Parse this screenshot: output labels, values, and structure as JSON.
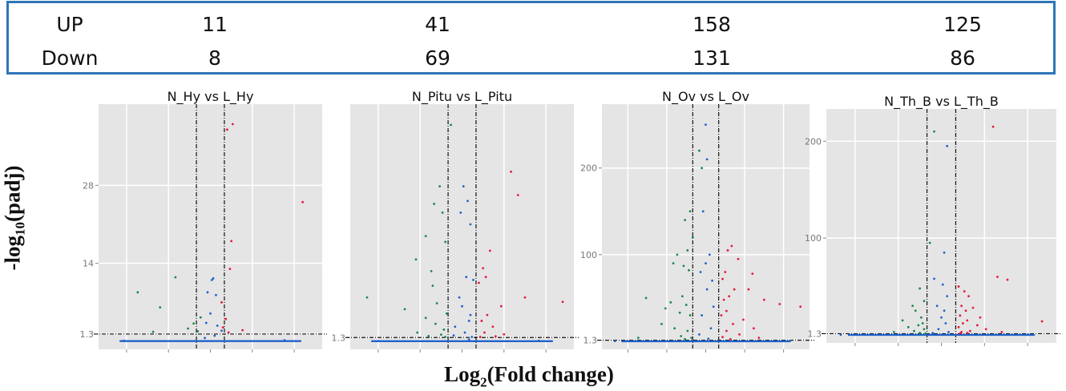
{
  "summary_table": {
    "rows": [
      {
        "label": "UP",
        "values": [
          "11",
          "41",
          "158",
          "125"
        ]
      },
      {
        "label": "Down",
        "values": [
          "8",
          "69",
          "131",
          "86"
        ]
      }
    ]
  },
  "axis": {
    "ylabel_main": "-log",
    "ylabel_sub": "10",
    "ylabel_tail": "(padj)",
    "xlabel_main": "Log",
    "xlabel_sub": "2",
    "xlabel_tail": "(Fold change)"
  },
  "colors": {
    "up": "#e8193c",
    "down": "#1a8a4a",
    "ns": "#1f62c9",
    "panel_bg": "#e5e5e5",
    "grid": "#ffffff",
    "border": "#2e75b6"
  },
  "chart_data": [
    {
      "type": "scatter",
      "title": "N_Hy  vs  L_Hy",
      "ytick_labels": [
        "1.3",
        "14",
        "28"
      ],
      "yticks": [
        1.3,
        14,
        28
      ],
      "ylim": [
        0,
        42
      ],
      "xlim": [
        -8,
        8
      ],
      "fc_threshold": 1,
      "padj_threshold": 1.3,
      "up": [
        [
          1.6,
          39
        ],
        [
          1.2,
          38
        ],
        [
          6.6,
          25
        ],
        [
          1.5,
          18
        ],
        [
          1.4,
          13
        ],
        [
          0.8,
          7
        ],
        [
          1.1,
          4
        ],
        [
          2.3,
          2
        ],
        [
          0.9,
          2.5
        ],
        [
          1.3,
          1.6
        ]
      ],
      "down": [
        [
          -5.2,
          8.8
        ],
        [
          -2.5,
          11.5
        ],
        [
          -1.2,
          3.2
        ],
        [
          -3.6,
          6.1
        ],
        [
          -0.7,
          4.3
        ],
        [
          -1.6,
          2.3
        ],
        [
          -0.9,
          1.8
        ],
        [
          -4.1,
          1.7
        ]
      ],
      "ns": [
        [
          0.1,
          11
        ],
        [
          0.2,
          11.3
        ],
        [
          -0.2,
          8.8
        ],
        [
          0.4,
          8.3
        ],
        [
          0.0,
          5
        ],
        [
          -0.3,
          3.3
        ],
        [
          0.5,
          2.8
        ],
        [
          0.8,
          1.9
        ],
        [
          0.3,
          1
        ],
        [
          -0.4,
          0.6
        ],
        [
          -6.2,
          0.1
        ],
        [
          5.3,
          0.2
        ]
      ]
    },
    {
      "type": "scatter",
      "title": "N_Pitu  vs  L_Pitu",
      "ytick_labels": [
        "1.3"
      ],
      "yticks": [
        1.3
      ],
      "ylim": [
        0,
        80
      ],
      "xlim": [
        -8,
        8
      ],
      "fc_threshold": 1,
      "padj_threshold": 1.3,
      "up": [
        [
          3.5,
          58
        ],
        [
          4.0,
          50
        ],
        [
          2.0,
          31
        ],
        [
          1.5,
          25
        ],
        [
          1.7,
          22
        ],
        [
          1.2,
          20
        ],
        [
          4.5,
          15
        ],
        [
          2.8,
          12
        ],
        [
          7.2,
          13.5
        ],
        [
          1.8,
          9
        ],
        [
          1.4,
          7
        ],
        [
          2.2,
          5
        ],
        [
          1.6,
          3
        ],
        [
          3.0,
          2.4
        ],
        [
          2.4,
          1.7
        ],
        [
          1.3,
          1.5
        ]
      ],
      "down": [
        [
          -0.8,
          74
        ],
        [
          -1.6,
          53
        ],
        [
          -2.0,
          47
        ],
        [
          -1.4,
          44
        ],
        [
          -2.6,
          36
        ],
        [
          -1.2,
          34
        ],
        [
          -3.3,
          28
        ],
        [
          -2.2,
          24
        ],
        [
          -2.1,
          19
        ],
        [
          -6.8,
          15
        ],
        [
          -4.1,
          11
        ],
        [
          -1.8,
          13
        ],
        [
          -1.1,
          9.5
        ],
        [
          -2.6,
          8
        ],
        [
          -1.9,
          6
        ],
        [
          -1.3,
          4
        ],
        [
          -3.2,
          3
        ],
        [
          -1.5,
          2.3
        ],
        [
          -2.4,
          1.8
        ],
        [
          -1.2,
          1.5
        ]
      ],
      "ns": [
        [
          0.1,
          53
        ],
        [
          0.4,
          48
        ],
        [
          -0.1,
          44
        ],
        [
          0.6,
          40
        ],
        [
          0.3,
          22
        ],
        [
          0.8,
          21
        ],
        [
          -0.2,
          15
        ],
        [
          0.0,
          12
        ],
        [
          0.6,
          9
        ],
        [
          0.5,
          7
        ],
        [
          -0.5,
          5
        ],
        [
          0.2,
          3
        ],
        [
          -0.6,
          2
        ],
        [
          0.7,
          1.5
        ],
        [
          0.5,
          0.6
        ],
        [
          -6.0,
          0.1
        ],
        [
          5.5,
          0.2
        ]
      ]
    },
    {
      "type": "scatter",
      "title": "N_Ov  vs  L_Ov",
      "ytick_labels": [
        "1.3",
        "100",
        "200"
      ],
      "yticks": [
        1.3,
        100,
        200
      ],
      "ylim": [
        0,
        270
      ],
      "xlim": [
        -8,
        8
      ],
      "fc_threshold": 1,
      "padj_threshold": 1.3,
      "up": [
        [
          2.0,
          110
        ],
        [
          1.7,
          105
        ],
        [
          2.5,
          95
        ],
        [
          3.6,
          78
        ],
        [
          1.5,
          80
        ],
        [
          1.3,
          72
        ],
        [
          3.3,
          60
        ],
        [
          2.2,
          60
        ],
        [
          1.8,
          52
        ],
        [
          1.4,
          48
        ],
        [
          4.5,
          48
        ],
        [
          7.3,
          40
        ],
        [
          5.7,
          43
        ],
        [
          1.6,
          35
        ],
        [
          1.2,
          30
        ],
        [
          2.9,
          25
        ],
        [
          2.1,
          20
        ],
        [
          3.7,
          15
        ],
        [
          1.6,
          12
        ],
        [
          2.6,
          8
        ],
        [
          1.3,
          5
        ],
        [
          4.1,
          4
        ],
        [
          1.9,
          2.5
        ]
      ],
      "down": [
        [
          -0.5,
          220
        ],
        [
          -0.3,
          200
        ],
        [
          -1.2,
          150
        ],
        [
          -1.6,
          140
        ],
        [
          -1.0,
          120
        ],
        [
          -1.4,
          105
        ],
        [
          -2.2,
          100
        ],
        [
          -2.5,
          90
        ],
        [
          -1.7,
          87
        ],
        [
          -1.3,
          82
        ],
        [
          -4.6,
          50
        ],
        [
          -2.7,
          45
        ],
        [
          -3.1,
          38
        ],
        [
          -1.8,
          52
        ],
        [
          -1.5,
          42
        ],
        [
          -2.0,
          33
        ],
        [
          -1.2,
          30
        ],
        [
          -3.4,
          20
        ],
        [
          -2.4,
          15
        ],
        [
          -1.4,
          12
        ],
        [
          -5.2,
          4
        ],
        [
          -1.9,
          6
        ],
        [
          -1.1,
          4
        ],
        [
          -1.6,
          2.5
        ]
      ],
      "ns": [
        [
          0.0,
          250
        ],
        [
          0.1,
          210
        ],
        [
          -0.2,
          150
        ],
        [
          0.3,
          100
        ],
        [
          0.0,
          90
        ],
        [
          -0.4,
          80
        ],
        [
          0.5,
          70
        ],
        [
          0.1,
          60
        ],
        [
          0.6,
          40
        ],
        [
          -0.3,
          30
        ],
        [
          0.4,
          15
        ],
        [
          -0.5,
          8
        ],
        [
          0.2,
          3
        ],
        [
          -7.0,
          0.3
        ],
        [
          6.5,
          0.5
        ]
      ]
    },
    {
      "type": "scatter",
      "title": "N_Th_B  vs  L_Th_B",
      "ytick_labels": [
        "1.3",
        "100",
        "200"
      ],
      "yticks": [
        1.3,
        100,
        200
      ],
      "ylim": [
        0,
        230
      ],
      "xlim": [
        -8,
        8
      ],
      "fc_threshold": 1,
      "padj_threshold": 1.3,
      "up": [
        [
          3.6,
          215
        ],
        [
          4.6,
          57
        ],
        [
          3.9,
          60
        ],
        [
          1.2,
          50
        ],
        [
          1.6,
          45
        ],
        [
          1.9,
          40
        ],
        [
          1.4,
          30
        ],
        [
          2.2,
          28
        ],
        [
          1.7,
          25
        ],
        [
          1.3,
          20
        ],
        [
          2.7,
          18
        ],
        [
          1.8,
          15
        ],
        [
          7.0,
          14
        ],
        [
          2.5,
          10
        ],
        [
          1.5,
          12
        ],
        [
          1.2,
          8
        ],
        [
          3.1,
          6
        ],
        [
          2.0,
          4
        ],
        [
          1.4,
          3
        ],
        [
          4.2,
          3
        ],
        [
          1.8,
          2
        ],
        [
          1.3,
          1.5
        ]
      ],
      "down": [
        [
          -0.5,
          210
        ],
        [
          -0.8,
          95
        ],
        [
          -1.5,
          48
        ],
        [
          -1.2,
          35
        ],
        [
          -2.0,
          30
        ],
        [
          -1.8,
          25
        ],
        [
          -1.4,
          18
        ],
        [
          -2.7,
          15
        ],
        [
          -1.3,
          12
        ],
        [
          -2.3,
          8
        ],
        [
          -1.6,
          10
        ],
        [
          -1.2,
          6
        ],
        [
          -1.9,
          4
        ],
        [
          -3.3,
          3
        ],
        [
          -1.5,
          2
        ],
        [
          -1.1,
          1.5
        ]
      ],
      "ns": [
        [
          0.4,
          195
        ],
        [
          0.2,
          85
        ],
        [
          -0.5,
          58
        ],
        [
          0.1,
          52
        ],
        [
          0.4,
          40
        ],
        [
          -0.3,
          30
        ],
        [
          0.2,
          25
        ],
        [
          0.0,
          18
        ],
        [
          0.3,
          12
        ],
        [
          -0.2,
          6
        ],
        [
          0.5,
          3
        ],
        [
          -0.6,
          1.8
        ],
        [
          -7.0,
          0.2
        ],
        [
          6.0,
          0.4
        ]
      ]
    }
  ]
}
